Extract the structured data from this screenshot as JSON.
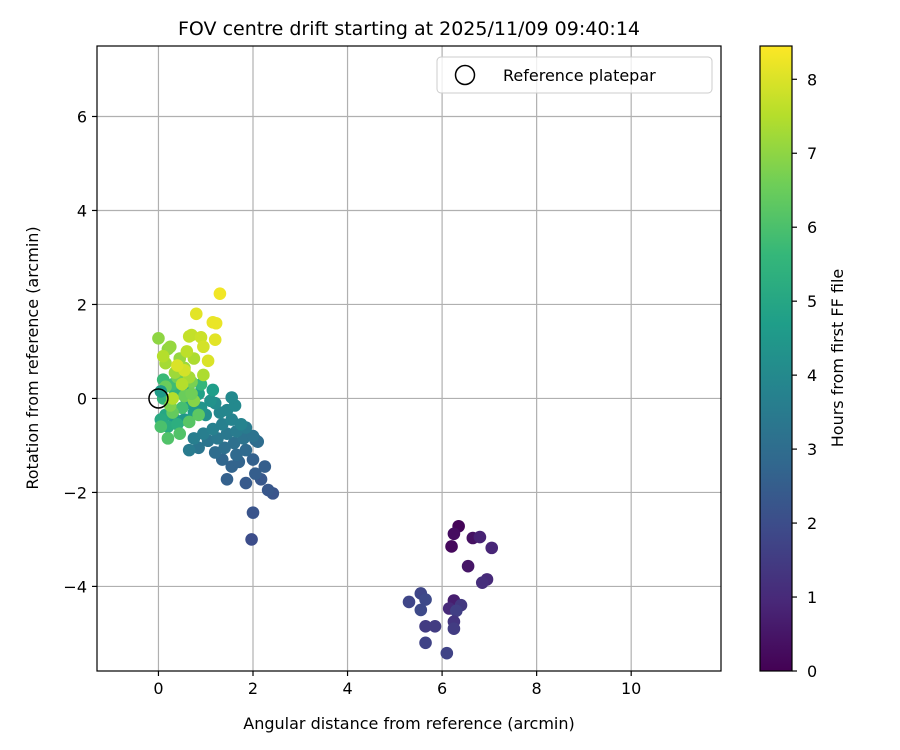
{
  "chart_data": {
    "type": "scatter",
    "title": "FOV centre drift starting at 2025/11/09 09:40:14",
    "xlabel": "Angular distance from reference (arcmin)",
    "ylabel": "Rotation from reference (arcmin)",
    "xlim": [
      -1.3,
      11.9
    ],
    "ylim": [
      -5.8,
      7.5
    ],
    "xticks": [
      0,
      2,
      4,
      6,
      8,
      10
    ],
    "yticks": [
      -4,
      -2,
      0,
      2,
      4,
      6
    ],
    "xtick_labels": [
      "0",
      "2",
      "4",
      "6",
      "8",
      "10"
    ],
    "ytick_labels": [
      "−4",
      "−2",
      "0",
      "2",
      "4",
      "6"
    ],
    "grid": true,
    "legend": {
      "position": "top-right",
      "entries": [
        {
          "label": "Reference platepar",
          "marker": "open-circle",
          "x": 0,
          "y": 0
        }
      ]
    },
    "colorbar": {
      "label": "Hours from first FF file",
      "colormap": "viridis",
      "range": [
        0,
        8.45
      ],
      "ticks": [
        0,
        1,
        2,
        3,
        4,
        5,
        6,
        7,
        8
      ],
      "tick_labels": [
        "0",
        "1",
        "2",
        "3",
        "4",
        "5",
        "6",
        "7",
        "8"
      ]
    },
    "series": [
      {
        "name": "FOV centre drift",
        "points": [
          {
            "x": 6.35,
            "y": -2.72,
            "c": 0.1
          },
          {
            "x": 6.25,
            "y": -2.88,
            "c": 0.3
          },
          {
            "x": 6.2,
            "y": -3.15,
            "c": 0.2
          },
          {
            "x": 6.55,
            "y": -3.57,
            "c": 0.5
          },
          {
            "x": 6.65,
            "y": -2.97,
            "c": 0.4
          },
          {
            "x": 6.8,
            "y": -2.95,
            "c": 0.8
          },
          {
            "x": 7.05,
            "y": -3.18,
            "c": 0.9
          },
          {
            "x": 6.95,
            "y": -3.85,
            "c": 1.0
          },
          {
            "x": 6.85,
            "y": -3.92,
            "c": 1.1
          },
          {
            "x": 6.25,
            "y": -4.3,
            "c": 0.7
          },
          {
            "x": 6.15,
            "y": -4.47,
            "c": 1.0
          },
          {
            "x": 6.4,
            "y": -4.4,
            "c": 1.4
          },
          {
            "x": 6.3,
            "y": -4.52,
            "c": 1.6
          },
          {
            "x": 6.25,
            "y": -4.75,
            "c": 1.3
          },
          {
            "x": 6.25,
            "y": -4.9,
            "c": 1.5
          },
          {
            "x": 5.85,
            "y": -4.85,
            "c": 1.5
          },
          {
            "x": 5.65,
            "y": -4.85,
            "c": 1.5
          },
          {
            "x": 5.55,
            "y": -4.15,
            "c": 1.8
          },
          {
            "x": 5.3,
            "y": -4.33,
            "c": 1.8
          },
          {
            "x": 5.55,
            "y": -4.5,
            "c": 1.9
          },
          {
            "x": 5.65,
            "y": -4.28,
            "c": 1.9
          },
          {
            "x": 5.65,
            "y": -5.2,
            "c": 1.7
          },
          {
            "x": 6.1,
            "y": -5.42,
            "c": 1.7
          },
          {
            "x": 1.97,
            "y": -3.0,
            "c": 2.0
          },
          {
            "x": 2.0,
            "y": -2.43,
            "c": 2.2
          },
          {
            "x": 2.42,
            "y": -2.02,
            "c": 2.2
          },
          {
            "x": 2.32,
            "y": -1.95,
            "c": 2.3
          },
          {
            "x": 2.17,
            "y": -1.72,
            "c": 2.3
          },
          {
            "x": 1.85,
            "y": -1.8,
            "c": 2.4
          },
          {
            "x": 2.05,
            "y": -1.6,
            "c": 2.5
          },
          {
            "x": 2.25,
            "y": -1.45,
            "c": 2.5
          },
          {
            "x": 1.45,
            "y": -1.72,
            "c": 2.6
          },
          {
            "x": 1.55,
            "y": -1.45,
            "c": 2.7
          },
          {
            "x": 1.7,
            "y": -1.35,
            "c": 2.7
          },
          {
            "x": 2.0,
            "y": -1.3,
            "c": 2.6
          },
          {
            "x": 1.35,
            "y": -1.3,
            "c": 2.8
          },
          {
            "x": 1.65,
            "y": -1.2,
            "c": 2.9
          },
          {
            "x": 1.85,
            "y": -1.1,
            "c": 2.9
          },
          {
            "x": 2.05,
            "y": -0.88,
            "c": 2.9
          },
          {
            "x": 2.1,
            "y": -0.92,
            "c": 3.0
          },
          {
            "x": 1.2,
            "y": -1.15,
            "c": 3.0
          },
          {
            "x": 1.4,
            "y": -1.05,
            "c": 3.1
          },
          {
            "x": 1.6,
            "y": -0.95,
            "c": 3.1
          },
          {
            "x": 1.8,
            "y": -0.85,
            "c": 3.2
          },
          {
            "x": 2.0,
            "y": -0.8,
            "c": 3.2
          },
          {
            "x": 0.85,
            "y": -1.05,
            "c": 3.3
          },
          {
            "x": 1.05,
            "y": -0.9,
            "c": 3.3
          },
          {
            "x": 1.25,
            "y": -0.85,
            "c": 3.4
          },
          {
            "x": 1.45,
            "y": -0.75,
            "c": 3.4
          },
          {
            "x": 1.65,
            "y": -0.7,
            "c": 3.5
          },
          {
            "x": 1.85,
            "y": -0.62,
            "c": 3.5
          },
          {
            "x": 0.65,
            "y": -1.1,
            "c": 3.5
          },
          {
            "x": 0.75,
            "y": -0.85,
            "c": 3.6
          },
          {
            "x": 0.95,
            "y": -0.75,
            "c": 3.6
          },
          {
            "x": 1.15,
            "y": -0.65,
            "c": 3.7
          },
          {
            "x": 1.35,
            "y": -0.55,
            "c": 3.7
          },
          {
            "x": 1.55,
            "y": -0.45,
            "c": 3.8
          },
          {
            "x": 1.75,
            "y": -0.55,
            "c": 3.8
          },
          {
            "x": 1.3,
            "y": -0.3,
            "c": 3.9
          },
          {
            "x": 1.45,
            "y": -0.25,
            "c": 3.9
          },
          {
            "x": 1.62,
            "y": -0.15,
            "c": 4.0
          },
          {
            "x": 1.55,
            "y": 0.02,
            "c": 4.0
          },
          {
            "x": 1.2,
            "y": -0.1,
            "c": 4.1
          },
          {
            "x": 1.0,
            "y": -0.35,
            "c": 4.2
          },
          {
            "x": 1.1,
            "y": -0.05,
            "c": 4.3
          },
          {
            "x": 0.9,
            "y": -0.2,
            "c": 4.4
          },
          {
            "x": 0.55,
            "y": -0.45,
            "c": 4.5
          },
          {
            "x": 0.75,
            "y": -0.3,
            "c": 4.6
          },
          {
            "x": 0.35,
            "y": -0.45,
            "c": 4.6
          },
          {
            "x": 0.6,
            "y": -0.1,
            "c": 4.7
          },
          {
            "x": 1.15,
            "y": 0.18,
            "c": 4.7
          },
          {
            "x": 0.85,
            "y": 0.1,
            "c": 4.8
          },
          {
            "x": 0.45,
            "y": 0.2,
            "c": 4.8
          },
          {
            "x": 0.25,
            "y": -0.05,
            "c": 4.9
          },
          {
            "x": 0.15,
            "y": -0.35,
            "c": 5.0
          },
          {
            "x": 0.05,
            "y": -0.45,
            "c": 5.1
          },
          {
            "x": 0.2,
            "y": -0.6,
            "c": 5.2
          },
          {
            "x": 0.4,
            "y": -0.55,
            "c": 5.3
          },
          {
            "x": 0.65,
            "y": 0.3,
            "c": 5.3
          },
          {
            "x": 0.35,
            "y": 0.15,
            "c": 5.4
          },
          {
            "x": 0.1,
            "y": 0.0,
            "c": 5.5
          },
          {
            "x": 0.9,
            "y": 0.3,
            "c": 5.6
          },
          {
            "x": 0.1,
            "y": 0.4,
            "c": 5.7
          },
          {
            "x": 0.3,
            "y": 0.3,
            "c": 5.8
          },
          {
            "x": 0.5,
            "y": -0.2,
            "c": 5.9
          },
          {
            "x": 0.05,
            "y": -0.6,
            "c": 6.0
          },
          {
            "x": 0.2,
            "y": -0.85,
            "c": 6.1
          },
          {
            "x": 0.45,
            "y": -0.75,
            "c": 6.1
          },
          {
            "x": 0.65,
            "y": -0.5,
            "c": 6.2
          },
          {
            "x": 0.85,
            "y": -0.35,
            "c": 6.3
          },
          {
            "x": 0.3,
            "y": -0.3,
            "c": 6.4
          },
          {
            "x": 0.55,
            "y": 0.05,
            "c": 6.5
          },
          {
            "x": 0.15,
            "y": 0.25,
            "c": 6.5
          },
          {
            "x": 0.4,
            "y": 0.45,
            "c": 6.6
          },
          {
            "x": 0.7,
            "y": 0.35,
            "c": 6.7
          },
          {
            "x": 0.25,
            "y": -0.15,
            "c": 6.8
          },
          {
            "x": 0.75,
            "y": -0.05,
            "c": 6.9
          },
          {
            "x": 0.0,
            "y": 1.28,
            "c": 7.0
          },
          {
            "x": 0.2,
            "y": 1.05,
            "c": 7.0
          },
          {
            "x": 0.25,
            "y": 1.1,
            "c": 7.1
          },
          {
            "x": 0.45,
            "y": 0.85,
            "c": 7.1
          },
          {
            "x": 0.55,
            "y": 0.65,
            "c": 7.2
          },
          {
            "x": 0.35,
            "y": 0.55,
            "c": 7.2
          },
          {
            "x": 0.15,
            "y": 0.75,
            "c": 7.3
          },
          {
            "x": 0.65,
            "y": 0.45,
            "c": 7.3
          },
          {
            "x": 0.95,
            "y": 0.5,
            "c": 7.4
          },
          {
            "x": 0.75,
            "y": 0.85,
            "c": 7.4
          },
          {
            "x": 0.1,
            "y": 0.9,
            "c": 7.5
          },
          {
            "x": 0.5,
            "y": 0.3,
            "c": 7.5
          },
          {
            "x": 0.3,
            "y": 0.0,
            "c": 7.5
          },
          {
            "x": 0.6,
            "y": 1.0,
            "c": 7.6
          },
          {
            "x": 0.7,
            "y": 1.35,
            "c": 7.7
          },
          {
            "x": 0.65,
            "y": 1.32,
            "c": 7.7
          },
          {
            "x": 0.9,
            "y": 1.3,
            "c": 7.8
          },
          {
            "x": 0.95,
            "y": 1.1,
            "c": 7.9
          },
          {
            "x": 0.55,
            "y": 0.6,
            "c": 7.9
          },
          {
            "x": 0.4,
            "y": 0.7,
            "c": 8.0
          },
          {
            "x": 1.05,
            "y": 0.8,
            "c": 8.0
          },
          {
            "x": 0.8,
            "y": 1.8,
            "c": 8.1
          },
          {
            "x": 1.2,
            "y": 1.25,
            "c": 8.1
          },
          {
            "x": 1.15,
            "y": 1.62,
            "c": 8.2
          },
          {
            "x": 1.22,
            "y": 1.6,
            "c": 8.2
          },
          {
            "x": 1.3,
            "y": 2.23,
            "c": 8.3
          },
          {
            "x": 0.7,
            "y": 0.1,
            "c": 6.6
          },
          {
            "x": 0.05,
            "y": 0.15,
            "c": 4.6
          }
        ]
      }
    ]
  },
  "colors": {
    "grid": "#b0b0b0",
    "axis": "#000000",
    "background": "#ffffff",
    "viridis_stops": [
      "#440154",
      "#482878",
      "#3e4989",
      "#31688e",
      "#26828e",
      "#1f9e89",
      "#35b779",
      "#6ece58",
      "#b5de2b",
      "#fde725"
    ]
  }
}
